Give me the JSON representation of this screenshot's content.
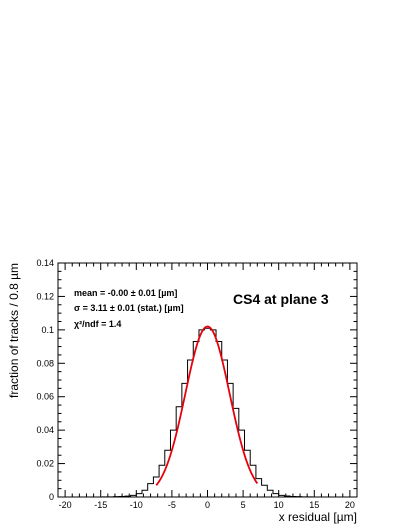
{
  "chart_data": {
    "type": "histogram",
    "title": "CS4 at plane 3",
    "xlabel": "x residual [µm]",
    "ylabel": "fraction of tracks / 0.8 µm",
    "xlim": [
      -21,
      21
    ],
    "ylim": [
      0,
      0.14
    ],
    "x_ticks": [
      -20,
      -15,
      -10,
      -5,
      0,
      5,
      10,
      15,
      20
    ],
    "x_tick_labels": [
      "-20",
      "-15",
      "-10",
      "-5",
      "0",
      "5",
      "10",
      "15",
      "20"
    ],
    "y_ticks": [
      0,
      0.02,
      0.04,
      0.06,
      0.08,
      0.1,
      0.12,
      0.14
    ],
    "y_tick_labels": [
      "0",
      "0.02",
      "0.04",
      "0.06",
      "0.08",
      "0.1",
      "0.12",
      "0.14"
    ],
    "bin_width": 0.8,
    "histogram": {
      "color": "#000000",
      "bin_edges": [
        -14.8,
        -14.0,
        -13.2,
        -12.4,
        -11.6,
        -10.8,
        -10.0,
        -9.2,
        -8.4,
        -7.6,
        -6.8,
        -6.0,
        -5.2,
        -4.4,
        -3.6,
        -2.8,
        -2.0,
        -1.2,
        -0.4,
        0.4,
        1.2,
        2.0,
        2.8,
        3.6,
        4.4,
        5.2,
        6.0,
        6.8,
        7.6,
        8.4,
        9.2,
        10.0,
        10.8,
        11.6,
        12.4,
        13.2,
        14.0,
        14.8
      ],
      "values": [
        0.0001,
        0.0001,
        0.0002,
        0.0003,
        0.0005,
        0.001,
        0.002,
        0.004,
        0.008,
        0.012,
        0.019,
        0.028,
        0.04,
        0.054,
        0.068,
        0.082,
        0.093,
        0.1,
        0.101,
        0.1,
        0.093,
        0.082,
        0.068,
        0.053,
        0.04,
        0.028,
        0.019,
        0.011,
        0.007,
        0.004,
        0.002,
        0.001,
        0.0006,
        0.0003,
        0.0002,
        0.0001,
        0.0001
      ]
    },
    "fit": {
      "type": "gaussian",
      "color": "#e8000b",
      "mean": 0.0,
      "sigma": 3.11,
      "amplitude": 0.102,
      "x_range": [
        -7.2,
        7.0
      ]
    },
    "annotations": {
      "mean_text": "mean = -0.00 ± 0.01 [µm]",
      "sigma_text": "σ = 3.11 ± 0.01 (stat.) [µm]",
      "chi2_text": "χ²/ndf = 1.4"
    }
  }
}
